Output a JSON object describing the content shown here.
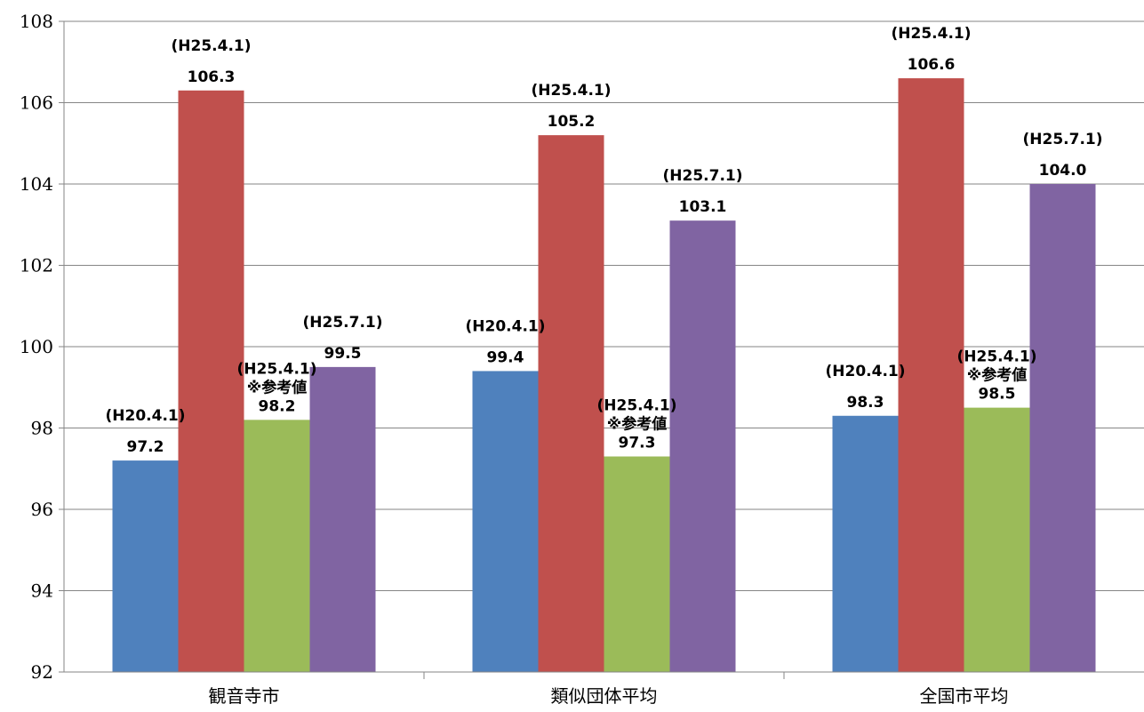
{
  "chart_data": {
    "type": "bar",
    "categories": [
      "観音寺市",
      "類似団体平均",
      "全国市平均"
    ],
    "series": [
      {
        "color": "#4F81BD",
        "values": [
          97.2,
          99.4,
          98.3
        ],
        "notes": [
          [
            "(H20.4.1)"
          ],
          [
            "(H20.4.1)"
          ],
          [
            "(H20.4.1)"
          ]
        ]
      },
      {
        "color": "#C0504D",
        "values": [
          106.3,
          105.2,
          106.6
        ],
        "notes": [
          [
            "(H25.4.1)"
          ],
          [
            "(H25.4.1)"
          ],
          [
            "(H25.4.1)"
          ]
        ]
      },
      {
        "color": "#9BBB59",
        "values": [
          98.2,
          97.3,
          98.5
        ],
        "notes": [
          [
            "(H25.4.1)",
            "※参考値"
          ],
          [
            "(H25.4.1)",
            "※参考値"
          ],
          [
            "(H25.4.1)",
            "※参考値"
          ]
        ]
      },
      {
        "color": "#8064A2",
        "values": [
          99.5,
          103.1,
          104.0
        ],
        "notes": [
          [
            "(H25.7.1)"
          ],
          [
            "(H25.7.1)"
          ],
          [
            "(H25.7.1)"
          ]
        ]
      }
    ],
    "yticks": [
      92,
      94,
      96,
      98,
      100,
      102,
      104,
      106,
      108
    ],
    "ylim": [
      92,
      108
    ],
    "grid": true,
    "legend": "none"
  }
}
